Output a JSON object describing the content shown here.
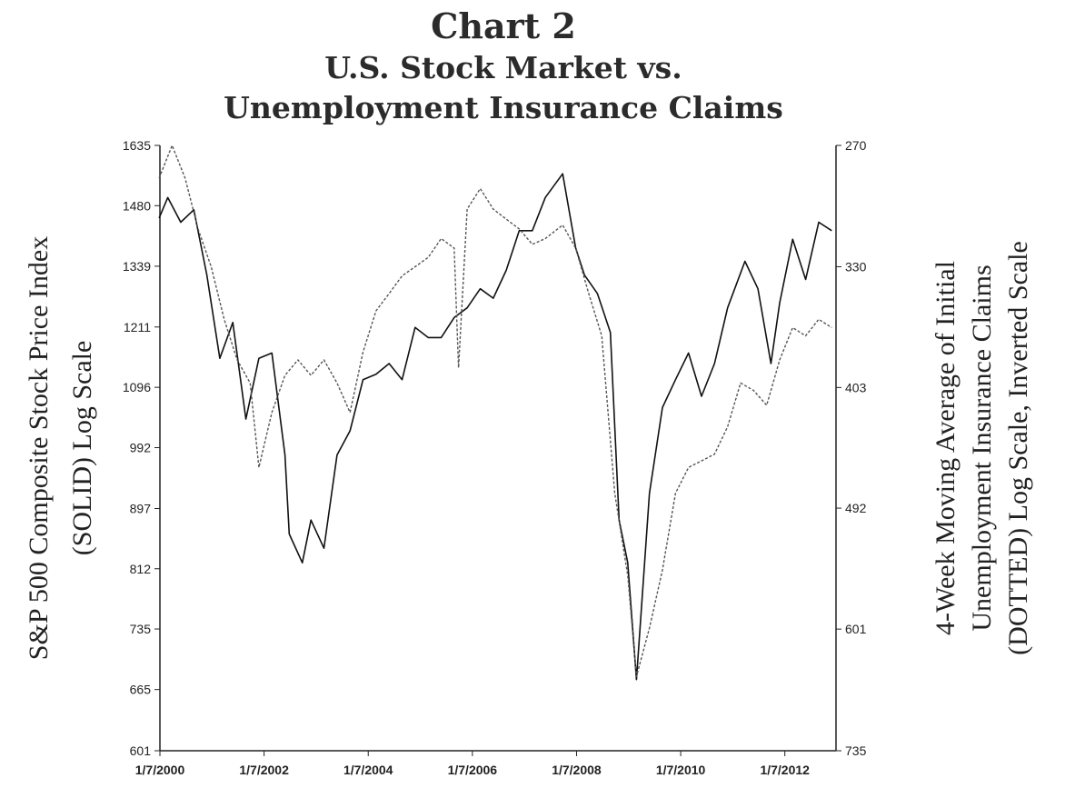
{
  "chart_data": {
    "type": "line",
    "title": "Chart 2",
    "subtitle_lines": [
      "U.S. Stock Market vs.",
      "Unemployment Insurance Claims"
    ],
    "ylabel_left": [
      "S&P 500 Composite Stock Price Index",
      "(SOLID) Log Scale"
    ],
    "ylabel_right": [
      "4-Week Moving Average of Initial",
      "Unemployment Insurance Claims",
      "(DOTTED) Log Scale, Inverted Scale"
    ],
    "x_tick_labels": [
      "1/7/2000",
      "1/7/2002",
      "1/7/2004",
      "1/7/2006",
      "1/7/2008",
      "1/7/2010",
      "1/7/2012"
    ],
    "x_range": [
      "1/7/2000",
      "12/31/2012"
    ],
    "y_left": {
      "scale": "log",
      "range": [
        601,
        1635
      ],
      "ticks": [
        1635,
        1480,
        1339,
        1211,
        1096,
        992,
        897,
        812,
        735,
        665,
        601
      ]
    },
    "y_right": {
      "scale": "log",
      "inverted": true,
      "range": [
        270,
        735
      ],
      "ticks": [
        270,
        330,
        403,
        492,
        601,
        735
      ]
    },
    "grid": false,
    "series": [
      {
        "style": "solid",
        "axis": "left",
        "x": [
          "2000-01",
          "2000-03",
          "2000-06",
          "2000-09",
          "2000-12",
          "2001-03",
          "2001-06",
          "2001-09",
          "2001-12",
          "2002-03",
          "2002-06",
          "2002-07",
          "2002-10",
          "2002-12",
          "2003-03",
          "2003-06",
          "2003-09",
          "2003-12",
          "2004-03",
          "2004-06",
          "2004-09",
          "2004-12",
          "2005-03",
          "2005-06",
          "2005-09",
          "2005-12",
          "2006-03",
          "2006-06",
          "2006-09",
          "2006-12",
          "2007-03",
          "2007-06",
          "2007-10",
          "2008-01",
          "2008-03",
          "2008-06",
          "2008-09",
          "2008-11",
          "2009-01",
          "2009-03",
          "2009-06",
          "2009-09",
          "2009-12",
          "2010-03",
          "2010-06",
          "2010-09",
          "2010-12",
          "2011-04",
          "2011-07",
          "2011-10",
          "2011-12",
          "2012-03",
          "2012-06",
          "2012-09",
          "2012-12"
        ],
        "y": [
          1450,
          1500,
          1440,
          1470,
          1320,
          1150,
          1220,
          1040,
          1150,
          1160,
          980,
          860,
          820,
          880,
          840,
          980,
          1020,
          1110,
          1120,
          1140,
          1110,
          1210,
          1190,
          1190,
          1230,
          1250,
          1290,
          1270,
          1330,
          1420,
          1420,
          1500,
          1560,
          1380,
          1320,
          1280,
          1200,
          880,
          820,
          676,
          920,
          1060,
          1110,
          1160,
          1080,
          1140,
          1250,
          1350,
          1290,
          1140,
          1260,
          1400,
          1310,
          1440,
          1420
        ]
      },
      {
        "style": "dotted",
        "axis": "right",
        "x": [
          "2000-01",
          "2000-04",
          "2000-07",
          "2000-10",
          "2001-01",
          "2001-04",
          "2001-07",
          "2001-10",
          "2001-12",
          "2002-03",
          "2002-06",
          "2002-09",
          "2002-12",
          "2003-03",
          "2003-06",
          "2003-09",
          "2003-12",
          "2004-03",
          "2004-06",
          "2004-09",
          "2004-12",
          "2005-03",
          "2005-06",
          "2005-09",
          "2005-10",
          "2005-12",
          "2006-03",
          "2006-06",
          "2006-09",
          "2006-12",
          "2007-03",
          "2007-06",
          "2007-10",
          "2008-01",
          "2008-04",
          "2008-07",
          "2008-10",
          "2009-01",
          "2009-03",
          "2009-06",
          "2009-09",
          "2009-12",
          "2010-03",
          "2010-06",
          "2010-09",
          "2010-12",
          "2011-03",
          "2011-06",
          "2011-09",
          "2011-12",
          "2012-03",
          "2012-06",
          "2012-09",
          "2012-12"
        ],
        "y": [
          285,
          270,
          285,
          310,
          330,
          360,
          385,
          400,
          460,
          420,
          395,
          385,
          395,
          385,
          400,
          420,
          380,
          355,
          345,
          335,
          330,
          325,
          315,
          320,
          390,
          300,
          290,
          300,
          305,
          310,
          318,
          315,
          308,
          320,
          345,
          370,
          480,
          550,
          650,
          600,
          545,
          480,
          460,
          455,
          450,
          430,
          400,
          405,
          415,
          385,
          365,
          370,
          360,
          365
        ]
      }
    ]
  }
}
